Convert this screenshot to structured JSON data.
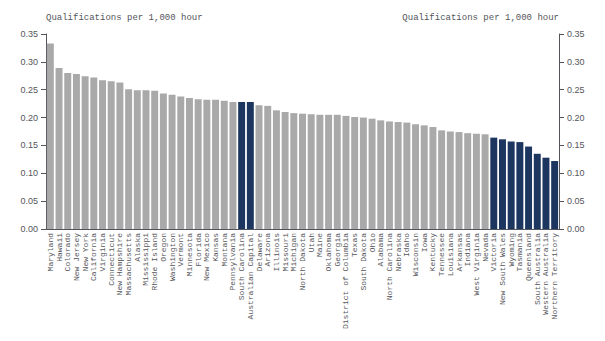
{
  "chart_data": {
    "type": "bar",
    "ylabel": "Qualifications per 1,000 hour",
    "y2label": "Qualifications per 1,000 hour",
    "categories": [
      "Maryland",
      "Hawaii",
      "Colorado",
      "New Jersey",
      "New York",
      "California",
      "Virginia",
      "Connecticut",
      "New Hampshire",
      "Massachusetts",
      "Alaska",
      "Mississippi",
      "Rhode Island",
      "Oregon",
      "Washington",
      "Vermont",
      "Minnesota",
      "Florida",
      "New Mexico",
      "Kansas",
      "Montana",
      "Pennsylvania",
      "South Carolina",
      "Australian Capital",
      "Delaware",
      "Arizona",
      "Illinois",
      "Missouri",
      "Michigan",
      "North Dakota",
      "Utah",
      "Maine",
      "Oklahoma",
      "Georgia",
      "District of Columbia",
      "Texas",
      "South Dakota",
      "Ohio",
      "Alabama",
      "North Carolina",
      "Nebraska",
      "Idaho",
      "Wisconsin",
      "Iowa",
      "Kentucky",
      "Tennessee",
      "Louisiana",
      "Arkansas",
      "Indiana",
      "West Virginia",
      "Nevada",
      "Victoria",
      "New South Wales",
      "Wyoming",
      "Tasmania",
      "Queensland",
      "South Australia",
      "Western Australia",
      "Northern Territory"
    ],
    "values": [
      0.333,
      0.289,
      0.28,
      0.278,
      0.274,
      0.272,
      0.267,
      0.265,
      0.263,
      0.251,
      0.249,
      0.249,
      0.248,
      0.243,
      0.241,
      0.238,
      0.235,
      0.233,
      0.232,
      0.232,
      0.23,
      0.228,
      0.228,
      0.228,
      0.222,
      0.221,
      0.213,
      0.21,
      0.208,
      0.207,
      0.206,
      0.205,
      0.205,
      0.205,
      0.203,
      0.201,
      0.2,
      0.198,
      0.195,
      0.193,
      0.192,
      0.191,
      0.188,
      0.186,
      0.183,
      0.177,
      0.175,
      0.174,
      0.172,
      0.171,
      0.17,
      0.164,
      0.161,
      0.157,
      0.156,
      0.148,
      0.135,
      0.128,
      0.122
    ],
    "colors": [
      "#a9a9a9",
      "#a9a9a9",
      "#a9a9a9",
      "#a9a9a9",
      "#a9a9a9",
      "#a9a9a9",
      "#a9a9a9",
      "#a9a9a9",
      "#a9a9a9",
      "#a9a9a9",
      "#a9a9a9",
      "#a9a9a9",
      "#a9a9a9",
      "#a9a9a9",
      "#a9a9a9",
      "#a9a9a9",
      "#a9a9a9",
      "#a9a9a9",
      "#a9a9a9",
      "#a9a9a9",
      "#a9a9a9",
      "#a9a9a9",
      "#1c3660",
      "#1c3660",
      "#a9a9a9",
      "#a9a9a9",
      "#a9a9a9",
      "#a9a9a9",
      "#a9a9a9",
      "#a9a9a9",
      "#a9a9a9",
      "#a9a9a9",
      "#a9a9a9",
      "#a9a9a9",
      "#a9a9a9",
      "#a9a9a9",
      "#a9a9a9",
      "#a9a9a9",
      "#a9a9a9",
      "#a9a9a9",
      "#a9a9a9",
      "#a9a9a9",
      "#a9a9a9",
      "#a9a9a9",
      "#a9a9a9",
      "#a9a9a9",
      "#a9a9a9",
      "#a9a9a9",
      "#a9a9a9",
      "#a9a9a9",
      "#a9a9a9",
      "#1c3660",
      "#1c3660",
      "#1c3660",
      "#1c3660",
      "#1c3660",
      "#1c3660",
      "#1c3660",
      "#1c3660"
    ],
    "ylim": [
      0,
      0.35
    ],
    "yticks": [
      {
        "value": 0.0,
        "label": "0.00"
      },
      {
        "value": 0.05,
        "label": "0.05"
      },
      {
        "value": 0.1,
        "label": "0.10"
      },
      {
        "value": 0.15,
        "label": "0.15"
      },
      {
        "value": 0.2,
        "label": "0.20"
      },
      {
        "value": 0.25,
        "label": "0.25"
      },
      {
        "value": 0.3,
        "label": "0.30"
      },
      {
        "value": 0.35,
        "label": "0.35"
      }
    ],
    "y2lim": [
      0,
      0.35
    ],
    "y2ticks": [
      {
        "value": 0.0,
        "label": "0.00"
      },
      {
        "value": 0.05,
        "label": "0.05"
      },
      {
        "value": 0.1,
        "label": "0.10"
      },
      {
        "value": 0.15,
        "label": "0.15"
      },
      {
        "value": 0.2,
        "label": "0.20"
      },
      {
        "value": 0.25,
        "label": "0.25"
      },
      {
        "value": 0.3,
        "label": "0.30"
      },
      {
        "value": 0.35,
        "label": "0.35"
      }
    ],
    "grid": false
  }
}
